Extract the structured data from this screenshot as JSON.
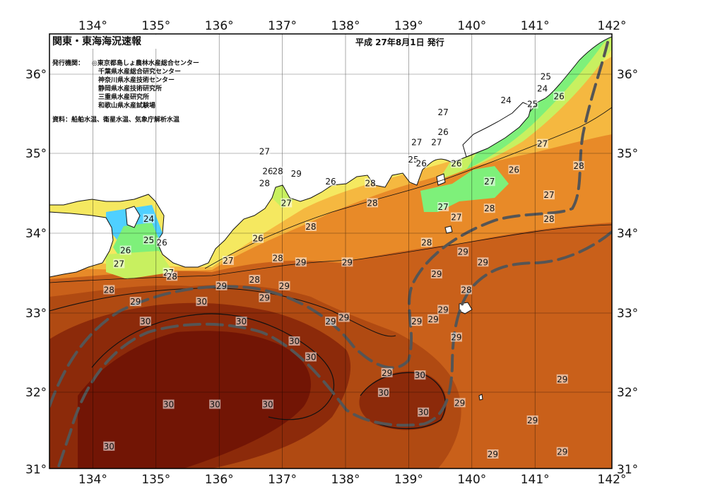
{
  "title": "関東・東海海況速報",
  "date_line": "平成 27年8月1日 発行",
  "issuer_heading": "発行機関：",
  "issuers": [
    "◎東京都島しょ農林水産総合センター",
    "千葉県水産総合研究センター",
    "神奈川県水産技術センター",
    "静岡県水産技術研究所",
    "三重県水産研究所",
    "和歌山県水産試験場"
  ],
  "sources": "資料：船舶水温、衛星水温、気象庁解析水温",
  "lon_labels": [
    "134°",
    "135°",
    "136°",
    "137°",
    "138°",
    "139°",
    "140°",
    "141°",
    "142°"
  ],
  "lat_labels": [
    "36°",
    "35°",
    "34°",
    "33°",
    "32°",
    "31°"
  ],
  "grid": {
    "lon_min": 133.5,
    "lon_max": 142,
    "lat_min": 31,
    "lat_max": 36.5
  },
  "colors": {
    "land": "#ffffff",
    "t22": "#4fd0ff",
    "t23": "#44e8c8",
    "t24": "#7ef07a",
    "t25": "#c8f060",
    "t26": "#f5e860",
    "t27": "#f5b840",
    "t28": "#e88a28",
    "t29": "#c9601a",
    "t29b": "#b04a12",
    "t30": "#8c2a0a",
    "t31": "#721505",
    "kuroshio": "#555555"
  },
  "temperature_labels": [
    {
      "value": "25",
      "lon": 141.0,
      "lat": 35.95
    },
    {
      "value": "24",
      "lon": 140.95,
      "lat": 35.8
    },
    {
      "value": "26",
      "lon": 141.2,
      "lat": 35.7
    },
    {
      "value": "24",
      "lon": 140.4,
      "lat": 35.65
    },
    {
      "value": "25",
      "lon": 140.8,
      "lat": 35.6
    },
    {
      "value": "27",
      "lon": 139.45,
      "lat": 35.5
    },
    {
      "value": "26",
      "lon": 139.45,
      "lat": 35.25
    },
    {
      "value": "27",
      "lon": 139.05,
      "lat": 35.12
    },
    {
      "value": "27",
      "lon": 139.35,
      "lat": 35.12
    },
    {
      "value": "25",
      "lon": 139.0,
      "lat": 34.9
    },
    {
      "value": "26",
      "lon": 139.12,
      "lat": 34.85
    },
    {
      "value": "26",
      "lon": 139.65,
      "lat": 34.85
    },
    {
      "value": "27",
      "lon": 140.95,
      "lat": 35.1
    },
    {
      "value": "28",
      "lon": 141.5,
      "lat": 34.82
    },
    {
      "value": "26",
      "lon": 140.52,
      "lat": 34.77
    },
    {
      "value": "27",
      "lon": 140.15,
      "lat": 34.62
    },
    {
      "value": "27",
      "lon": 141.05,
      "lat": 34.45
    },
    {
      "value": "27",
      "lon": 139.45,
      "lat": 34.3
    },
    {
      "value": "28",
      "lon": 140.15,
      "lat": 34.28
    },
    {
      "value": "27",
      "lon": 139.65,
      "lat": 34.17
    },
    {
      "value": "28",
      "lon": 141.05,
      "lat": 34.15
    },
    {
      "value": "27",
      "lon": 136.75,
      "lat": 35.0
    },
    {
      "value": "26",
      "lon": 136.8,
      "lat": 34.75
    },
    {
      "value": "28",
      "lon": 136.95,
      "lat": 34.75
    },
    {
      "value": "29",
      "lon": 137.23,
      "lat": 34.72
    },
    {
      "value": "28",
      "lon": 136.75,
      "lat": 34.6
    },
    {
      "value": "26",
      "lon": 137.75,
      "lat": 34.62
    },
    {
      "value": "28",
      "lon": 138.35,
      "lat": 34.6
    },
    {
      "value": "27",
      "lon": 137.08,
      "lat": 34.35
    },
    {
      "value": "28",
      "lon": 138.38,
      "lat": 34.35
    },
    {
      "value": "28",
      "lon": 137.45,
      "lat": 34.05
    },
    {
      "value": "24",
      "lon": 135.0,
      "lat": 34.15
    },
    {
      "value": "25",
      "lon": 135.0,
      "lat": 33.88
    },
    {
      "value": "26",
      "lon": 135.2,
      "lat": 33.85
    },
    {
      "value": "26",
      "lon": 134.65,
      "lat": 33.75
    },
    {
      "value": "27",
      "lon": 134.55,
      "lat": 33.58
    },
    {
      "value": "26",
      "lon": 136.65,
      "lat": 33.9
    },
    {
      "value": "28",
      "lon": 136.95,
      "lat": 33.65
    },
    {
      "value": "27",
      "lon": 136.2,
      "lat": 33.62
    },
    {
      "value": "29",
      "lon": 137.3,
      "lat": 33.6
    },
    {
      "value": "29",
      "lon": 138.0,
      "lat": 33.6
    },
    {
      "value": "28",
      "lon": 139.2,
      "lat": 33.85
    },
    {
      "value": "29",
      "lon": 139.75,
      "lat": 33.73
    },
    {
      "value": "29",
      "lon": 140.05,
      "lat": 33.6
    },
    {
      "value": "29",
      "lon": 139.35,
      "lat": 33.45
    },
    {
      "value": "27",
      "lon": 135.3,
      "lat": 33.47
    },
    {
      "value": "28",
      "lon": 135.35,
      "lat": 33.42
    },
    {
      "value": "28",
      "lon": 134.4,
      "lat": 33.25
    },
    {
      "value": "28",
      "lon": 136.6,
      "lat": 33.38
    },
    {
      "value": "29",
      "lon": 136.1,
      "lat": 33.3
    },
    {
      "value": "29",
      "lon": 137.05,
      "lat": 33.3
    },
    {
      "value": "28",
      "lon": 139.8,
      "lat": 33.25
    },
    {
      "value": "29",
      "lon": 134.8,
      "lat": 33.1
    },
    {
      "value": "30",
      "lon": 135.8,
      "lat": 33.1
    },
    {
      "value": "29",
      "lon": 136.75,
      "lat": 33.15
    },
    {
      "value": "29",
      "lon": 139.45,
      "lat": 33.0
    },
    {
      "value": "29",
      "lon": 137.95,
      "lat": 32.9
    },
    {
      "value": "29",
      "lon": 137.75,
      "lat": 32.85
    },
    {
      "value": "30",
      "lon": 134.95,
      "lat": 32.85
    },
    {
      "value": "30",
      "lon": 136.4,
      "lat": 32.85
    },
    {
      "value": "29",
      "lon": 139.3,
      "lat": 32.88
    },
    {
      "value": "29",
      "lon": 139.05,
      "lat": 32.85
    },
    {
      "value": "30",
      "lon": 137.2,
      "lat": 32.6
    },
    {
      "value": "29",
      "lon": 139.65,
      "lat": 32.65
    },
    {
      "value": "30",
      "lon": 137.45,
      "lat": 32.4
    },
    {
      "value": "29",
      "lon": 138.6,
      "lat": 32.2
    },
    {
      "value": "30",
      "lon": 139.1,
      "lat": 32.17
    },
    {
      "value": "30",
      "lon": 138.55,
      "lat": 31.95
    },
    {
      "value": "29",
      "lon": 141.25,
      "lat": 32.12
    },
    {
      "value": "29",
      "lon": 139.7,
      "lat": 31.82
    },
    {
      "value": "30",
      "lon": 135.3,
      "lat": 31.8
    },
    {
      "value": "30",
      "lon": 136.0,
      "lat": 31.8
    },
    {
      "value": "30",
      "lon": 136.8,
      "lat": 31.8
    },
    {
      "value": "30",
      "lon": 139.15,
      "lat": 31.7
    },
    {
      "value": "29",
      "lon": 140.8,
      "lat": 31.6
    },
    {
      "value": "30",
      "lon": 134.4,
      "lat": 31.27
    },
    {
      "value": "29",
      "lon": 140.2,
      "lat": 31.17
    },
    {
      "value": "29",
      "lon": 141.25,
      "lat": 31.2
    }
  ]
}
